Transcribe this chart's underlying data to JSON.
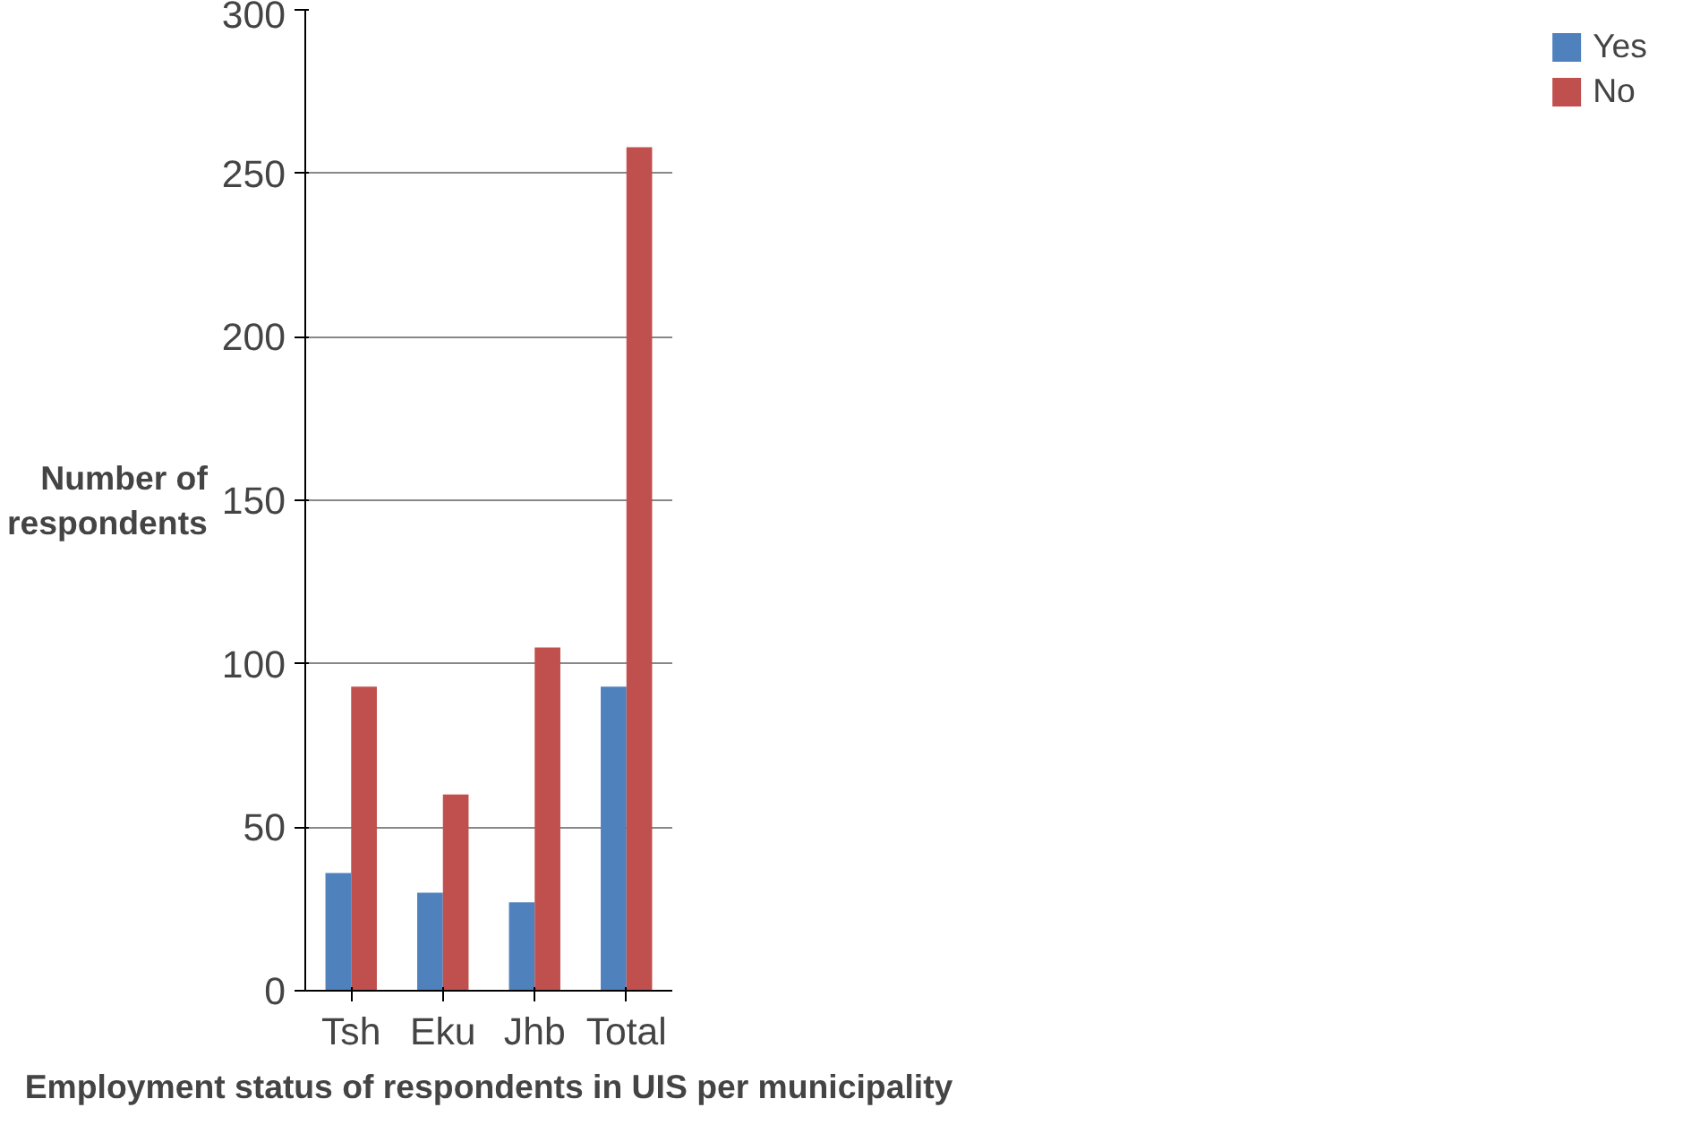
{
  "chart_data": {
    "type": "bar",
    "xlabel": "Employment status of respondents in UIS per municipality",
    "ylabel": "Number of\nrespondents",
    "categories": [
      "Tsh",
      "Eku",
      "Jhb",
      "Total"
    ],
    "series": [
      {
        "name": "Yes",
        "color": "#4f81bd",
        "values": [
          36,
          30,
          27,
          93
        ]
      },
      {
        "name": "No",
        "color": "#c0504d",
        "values": [
          93,
          60,
          105,
          258
        ]
      }
    ],
    "ylim": [
      0,
      300
    ],
    "yticks": [
      0,
      50,
      100,
      150,
      200,
      250,
      300
    ],
    "grid": "y",
    "legend": "right"
  }
}
